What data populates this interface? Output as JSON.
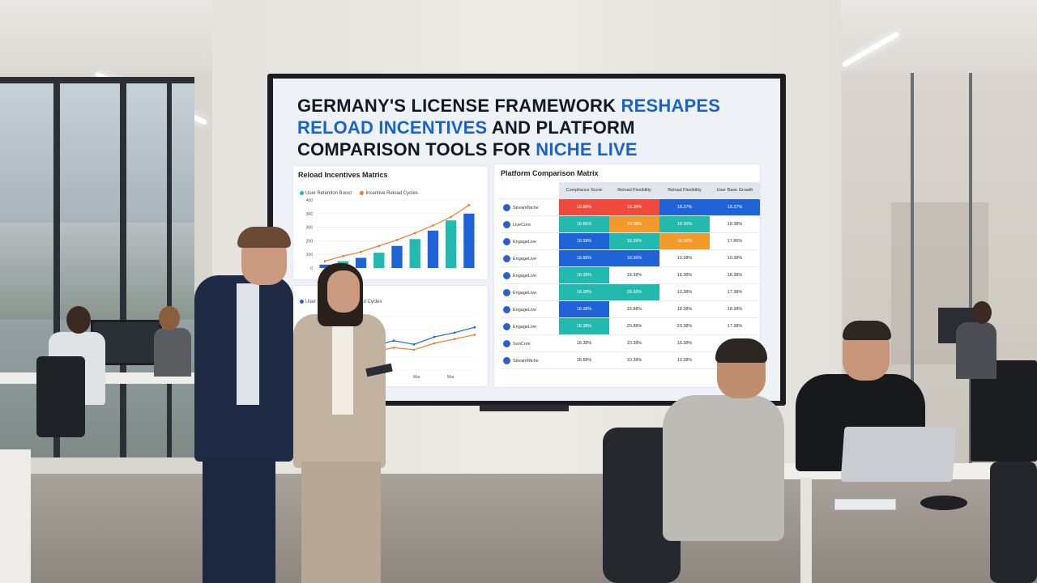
{
  "screen": {
    "headline_line1_dark": "GERMANY'S LICENSE FRAMEWORK ",
    "headline_line1_blue": "RESHAPES",
    "headline_line2_blue": "RELOAD INCENTIVES",
    "headline_line2_dark": " AND PLATFORM",
    "headline_line3_dark": "COMPARISON TOOLS FOR ",
    "headline_line3_blue": "NICHE LIVE",
    "accent_blue": "#1a63c9"
  },
  "chart_data": [
    {
      "type": "bar",
      "title": "Reload Incentives Matrics",
      "legend": [
        "User Retention Boost",
        "Incentive Reload Cycles"
      ],
      "yticks": [
        "0",
        "100",
        "200",
        "300",
        "360",
        "400"
      ],
      "series": [
        {
          "name": "User Retention Boost",
          "values": [
            20,
            40,
            60,
            90,
            130,
            170,
            220,
            280,
            320
          ]
        },
        {
          "name": "Incentive Reload Cycles",
          "values": [
            40,
            70,
            95,
            130,
            165,
            205,
            250,
            300,
            370
          ]
        }
      ],
      "colors": [
        "#21b9b0",
        "#1f63d6",
        "#f07c2a"
      ]
    },
    {
      "type": "line",
      "title": "",
      "legend": [
        "User",
        "Incentive Reload Cycles"
      ],
      "xticks": [
        "Mar",
        "Mar",
        "Mar",
        "Mar"
      ],
      "series": [
        {
          "name": "User",
          "values": [
            30,
            38,
            32,
            45,
            55,
            48,
            62,
            70,
            80
          ]
        },
        {
          "name": "Incentive Reload Cycles",
          "values": [
            20,
            28,
            24,
            34,
            42,
            38,
            50,
            58,
            66
          ]
        }
      ]
    },
    {
      "type": "table",
      "title": "Platform Comparison Matrix",
      "columns": [
        "Compliance Score",
        "Reload Flexibility",
        "Reload Flexibility",
        "User Base Growth"
      ],
      "rows": [
        {
          "name": "StreamNiche",
          "cells": [
            "18.88%",
            "18.38%",
            "18.37%",
            "18.37%"
          ],
          "colors": [
            "#ef4a3c",
            "#ef4a3c",
            "#1f63d6",
            "#1f63d6"
          ]
        },
        {
          "name": "LiveCore",
          "cells": [
            "18.86%",
            "18.38%",
            "18.36%",
            "18.38%"
          ],
          "colors": [
            "#22b9ae",
            "#f29b2a",
            "#22b9ae",
            ""
          ]
        },
        {
          "name": "EngageLive",
          "cells": [
            "18.38%",
            "18.38%",
            "18.36%",
            "17.86%"
          ],
          "colors": [
            "#1f63d6",
            "#22b9ae",
            "#f29b2a",
            ""
          ]
        },
        {
          "name": "EngageLive",
          "cells": [
            "18.88%",
            "18.36%",
            "10.38%",
            "10.38%"
          ],
          "colors": [
            "#1f63d6",
            "#1f63d6",
            "",
            ""
          ]
        },
        {
          "name": "EngageLive",
          "cells": [
            "18.38%",
            "18.38%",
            "18.38%",
            "18.38%"
          ],
          "colors": [
            "#22b9ae",
            "",
            "",
            ""
          ]
        },
        {
          "name": "EngageLive",
          "cells": [
            "18.38%",
            "28.38%",
            "10.38%",
            "17.38%"
          ],
          "colors": [
            "#22b9ae",
            "#22b9ae",
            "",
            ""
          ]
        },
        {
          "name": "EngageLive",
          "cells": [
            "18.38%",
            "18.88%",
            "18.38%",
            "18.38%"
          ],
          "colors": [
            "#1f63d6",
            "",
            "",
            ""
          ]
        },
        {
          "name": "EngageLive",
          "cells": [
            "18.38%",
            "20.88%",
            "20.38%",
            "17.38%"
          ],
          "colors": [
            "#22b9ae",
            "",
            "",
            ""
          ]
        },
        {
          "name": "SunCore",
          "cells": [
            "18.38%",
            "10.38%",
            "18.38%",
            "18.38%"
          ],
          "colors": [
            "",
            "",
            "",
            ""
          ]
        },
        {
          "name": "StreamNiche",
          "cells": [
            "18.88%",
            "10.38%",
            "10.38%",
            "18.38%"
          ],
          "colors": [
            "",
            "",
            "",
            ""
          ]
        }
      ]
    }
  ]
}
